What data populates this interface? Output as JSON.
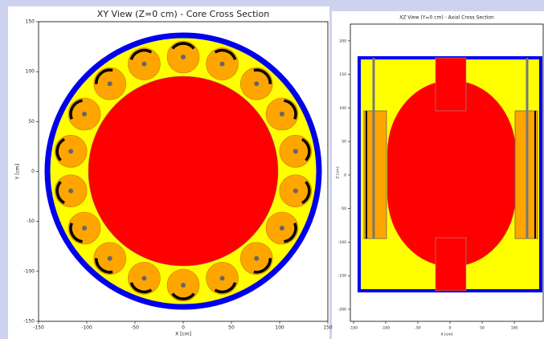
{
  "chart_data": [
    {
      "type": "geometry",
      "title": "XY View (Z=0 cm) - Core Cross Section",
      "xlabel": "X [cm]",
      "ylabel": "Y [cm]",
      "xlim": [
        -150,
        150
      ],
      "ylim": [
        -150,
        150
      ],
      "xticks": [
        -150,
        -100,
        -50,
        0,
        50,
        100,
        150
      ],
      "yticks": [
        -150,
        -100,
        -50,
        0,
        50,
        100,
        150
      ]
    },
    {
      "type": "geometry",
      "title": "XZ View (Y=0 cm) - Axial Cross Section",
      "xlabel": "X [cm]",
      "ylabel": "Z [cm]",
      "xlim": [
        -155,
        145
      ],
      "ylim": [
        -218,
        225
      ],
      "xticks": [
        -150,
        -100,
        -50,
        0,
        50,
        100
      ],
      "yticks": [
        -200,
        -150,
        -100,
        -50,
        0,
        50,
        100,
        150,
        200
      ]
    }
  ]
}
